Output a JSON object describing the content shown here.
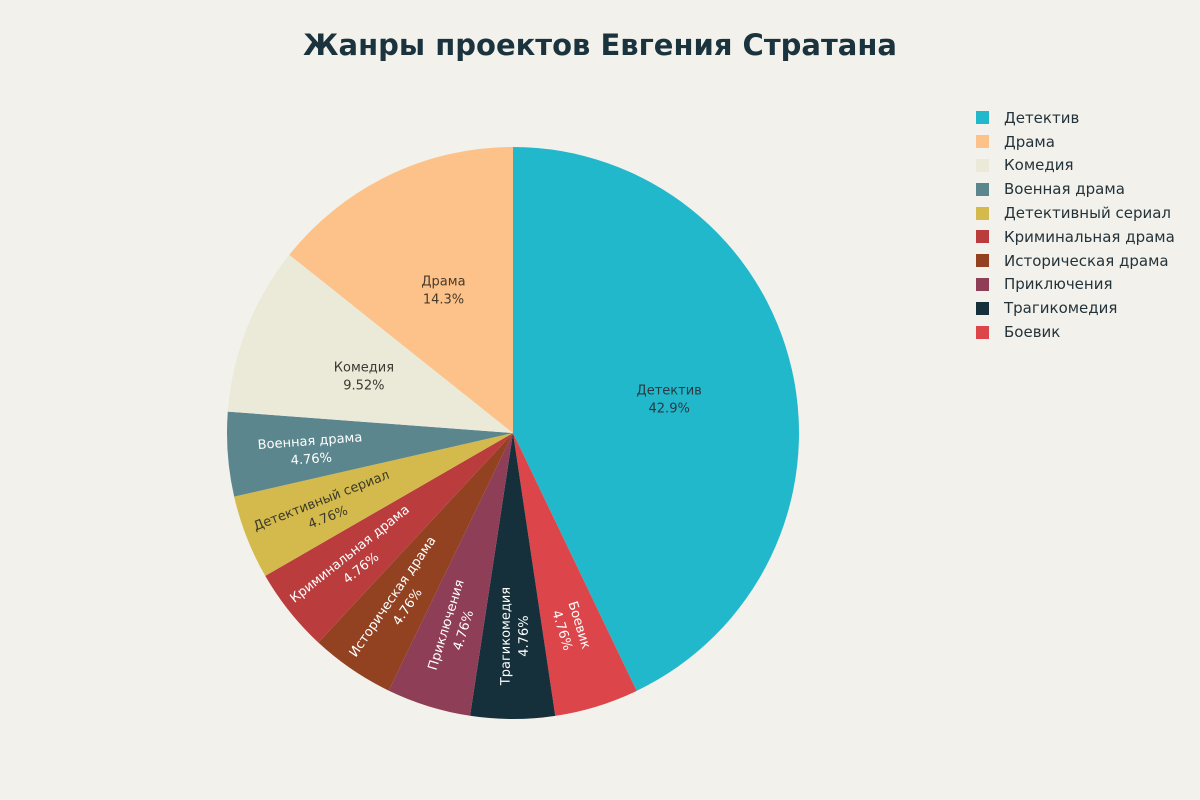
{
  "chart_data": {
    "type": "pie",
    "title": "Жанры проектов Евгения Стратана",
    "slices": [
      {
        "label": "Детектив",
        "value": 42.9,
        "display": "42.9%",
        "color": "#22b8cc",
        "text_color": "#2b3a40"
      },
      {
        "label": "Боевик",
        "value": 4.76,
        "display": "4.76%",
        "color": "#dc4549",
        "text_color": "#ffffff"
      },
      {
        "label": "Трагикомедия",
        "value": 4.76,
        "display": "4.76%",
        "color": "#15303a",
        "text_color": "#ffffff"
      },
      {
        "label": "Приключения",
        "value": 4.76,
        "display": "4.76%",
        "color": "#8e3e57",
        "text_color": "#ffffff"
      },
      {
        "label": "Историческая драма",
        "value": 4.76,
        "display": "4.76%",
        "color": "#934221",
        "text_color": "#ffffff"
      },
      {
        "label": "Криминальная драма",
        "value": 4.76,
        "display": "4.76%",
        "color": "#bb3c3c",
        "text_color": "#ffffff"
      },
      {
        "label": "Детективный сериал",
        "value": 4.76,
        "display": "4.76%",
        "color": "#d4ba4c",
        "text_color": "#3a3a2a"
      },
      {
        "label": "Военная драма",
        "value": 4.76,
        "display": "4.76%",
        "color": "#5c868d",
        "text_color": "#ffffff"
      },
      {
        "label": "Комедия",
        "value": 9.52,
        "display": "9.52%",
        "color": "#ebe9d7",
        "text_color": "#3a3a34"
      },
      {
        "label": "Драма",
        "value": 14.3,
        "display": "14.3%",
        "color": "#fdc289",
        "text_color": "#4a3a2a"
      }
    ],
    "legend": [
      "Детектив",
      "Драма",
      "Комедия",
      "Военная драма",
      "Детективный сериал",
      "Криминальная драма",
      "Историческая драма",
      "Приключения",
      "Трагикомедия",
      "Боевик"
    ],
    "legend_position": "top-right"
  }
}
